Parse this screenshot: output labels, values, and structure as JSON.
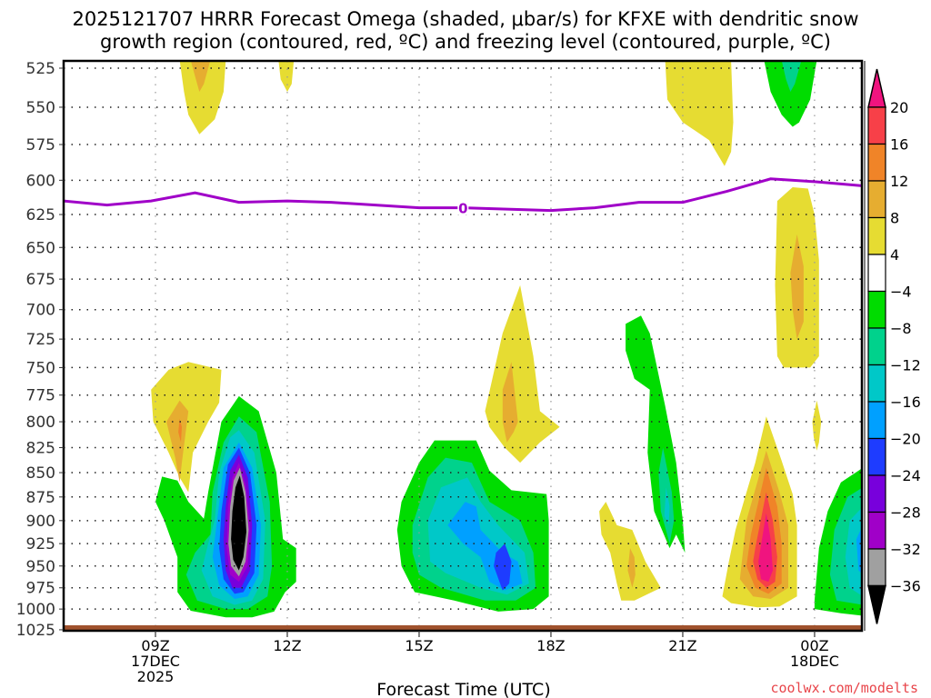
{
  "chart_data": {
    "type": "heatmap",
    "title_line1": "2025121707 HRRR Forecast Omega (shaded, μbar/s) for KFXE with dendritic snow",
    "title_line2": "growth region (contoured, red, ºC) and freezing level (contoured, purple, ºC)",
    "xlabel": "Forecast Time (UTC)",
    "ylabel": "",
    "credit": "coolwx.com/modelts",
    "xlim_hours": [
      6.9,
      25.1
    ],
    "ylim_hPa": [
      520,
      1028
    ],
    "y_scale": "log-pressure (inverted)",
    "grid": true,
    "y_ticks": [
      525,
      550,
      575,
      600,
      625,
      650,
      675,
      700,
      725,
      750,
      775,
      800,
      825,
      850,
      875,
      900,
      925,
      950,
      975,
      1000,
      1025
    ],
    "x_ticks": [
      {
        "hour": 9,
        "lines": [
          "09Z",
          "17DEC",
          "2025"
        ]
      },
      {
        "hour": 12,
        "lines": [
          "12Z"
        ]
      },
      {
        "hour": 15,
        "lines": [
          "15Z"
        ]
      },
      {
        "hour": 18,
        "lines": [
          "18Z"
        ]
      },
      {
        "hour": 21,
        "lines": [
          "21Z"
        ]
      },
      {
        "hour": 24,
        "lines": [
          "00Z",
          "18DEC"
        ]
      }
    ],
    "colorbar": {
      "levels": [
        20,
        16,
        12,
        8,
        4,
        -4,
        -8,
        -12,
        -16,
        -20,
        -24,
        -28,
        -32,
        -36
      ],
      "colors": [
        "#f0147f",
        "#f74048",
        "#f08428",
        "#e6ad30",
        "#e6dc32",
        "#ffffff",
        "#00dc00",
        "#00d28c",
        "#00c8c8",
        "#00a0ff",
        "#1e3cff",
        "#7800dc",
        "#a000c8",
        "#a0a0a0",
        "#000000"
      ],
      "over_label": "> 20",
      "under_label": "< -36"
    },
    "freezing_level": {
      "label": "0",
      "color": "#a000c8",
      "points": [
        [
          6.9,
          615
        ],
        [
          7.9,
          618
        ],
        [
          8.9,
          615
        ],
        [
          9.9,
          609
        ],
        [
          10.9,
          616
        ],
        [
          12,
          615
        ],
        [
          13,
          616
        ],
        [
          15,
          620
        ],
        [
          16,
          620
        ],
        [
          17,
          621
        ],
        [
          18,
          622
        ],
        [
          19,
          620
        ],
        [
          20,
          616
        ],
        [
          21,
          616
        ],
        [
          22,
          608
        ],
        [
          23,
          599
        ],
        [
          24,
          601
        ],
        [
          25.1,
          604
        ]
      ]
    },
    "omega_features": [
      {
        "name": "strong-upward-core-10_9Z",
        "hour_center": 10.9,
        "p_range": [
          775,
          1010
        ],
        "min_value": -36,
        "note": "black core below -36 near 840-975 hPa"
      },
      {
        "name": "upward-area-16Z",
        "hour_center": 16.0,
        "p_range": [
          815,
          1005
        ],
        "min_value": -24
      },
      {
        "name": "upward-band-20_5Z",
        "hour_center": 20.5,
        "p_range": [
          705,
          935
        ],
        "min_value": -16
      },
      {
        "name": "upward-area-right-edge",
        "hour_center": 24.8,
        "p_range": [
          845,
          1005
        ],
        "min_value": -20
      },
      {
        "name": "upward-top-23_5Z",
        "hour_center": 23.5,
        "p_range": [
          520,
          560
        ],
        "min_value": -12
      },
      {
        "name": "downward-core-22_8Z",
        "hour_center": 22.8,
        "p_range": [
          795,
          990
        ],
        "max_value": 20
      },
      {
        "name": "downward-9_5Z",
        "hour_center": 9.5,
        "p_range": [
          745,
          850
        ],
        "max_value": 16
      },
      {
        "name": "downward-16_7Z",
        "hour_center": 16.9,
        "p_range": [
          680,
          840
        ],
        "max_value": 12
      },
      {
        "name": "downward-23_5Z-mid",
        "hour_center": 23.6,
        "p_range": [
          605,
          750
        ],
        "max_value": 12
      },
      {
        "name": "downward-10Z-top",
        "hour_center": 10.0,
        "p_range": [
          520,
          570
        ],
        "max_value": 12
      },
      {
        "name": "downward-12Z-top",
        "hour_center": 12.0,
        "p_range": [
          520,
          540
        ],
        "max_value": 8
      },
      {
        "name": "downward-21_5Z-top",
        "hour_center": 21.4,
        "p_range": [
          520,
          590
        ],
        "max_value": 8
      },
      {
        "name": "downward-19_8Z",
        "hour_center": 19.8,
        "p_range": [
          885,
          985
        ],
        "max_value": 12
      },
      {
        "name": "downward-24Z-small",
        "hour_center": 24.0,
        "p_range": [
          780,
          825
        ],
        "max_value": 8
      }
    ],
    "terrain_band_color": "#a0522d"
  }
}
